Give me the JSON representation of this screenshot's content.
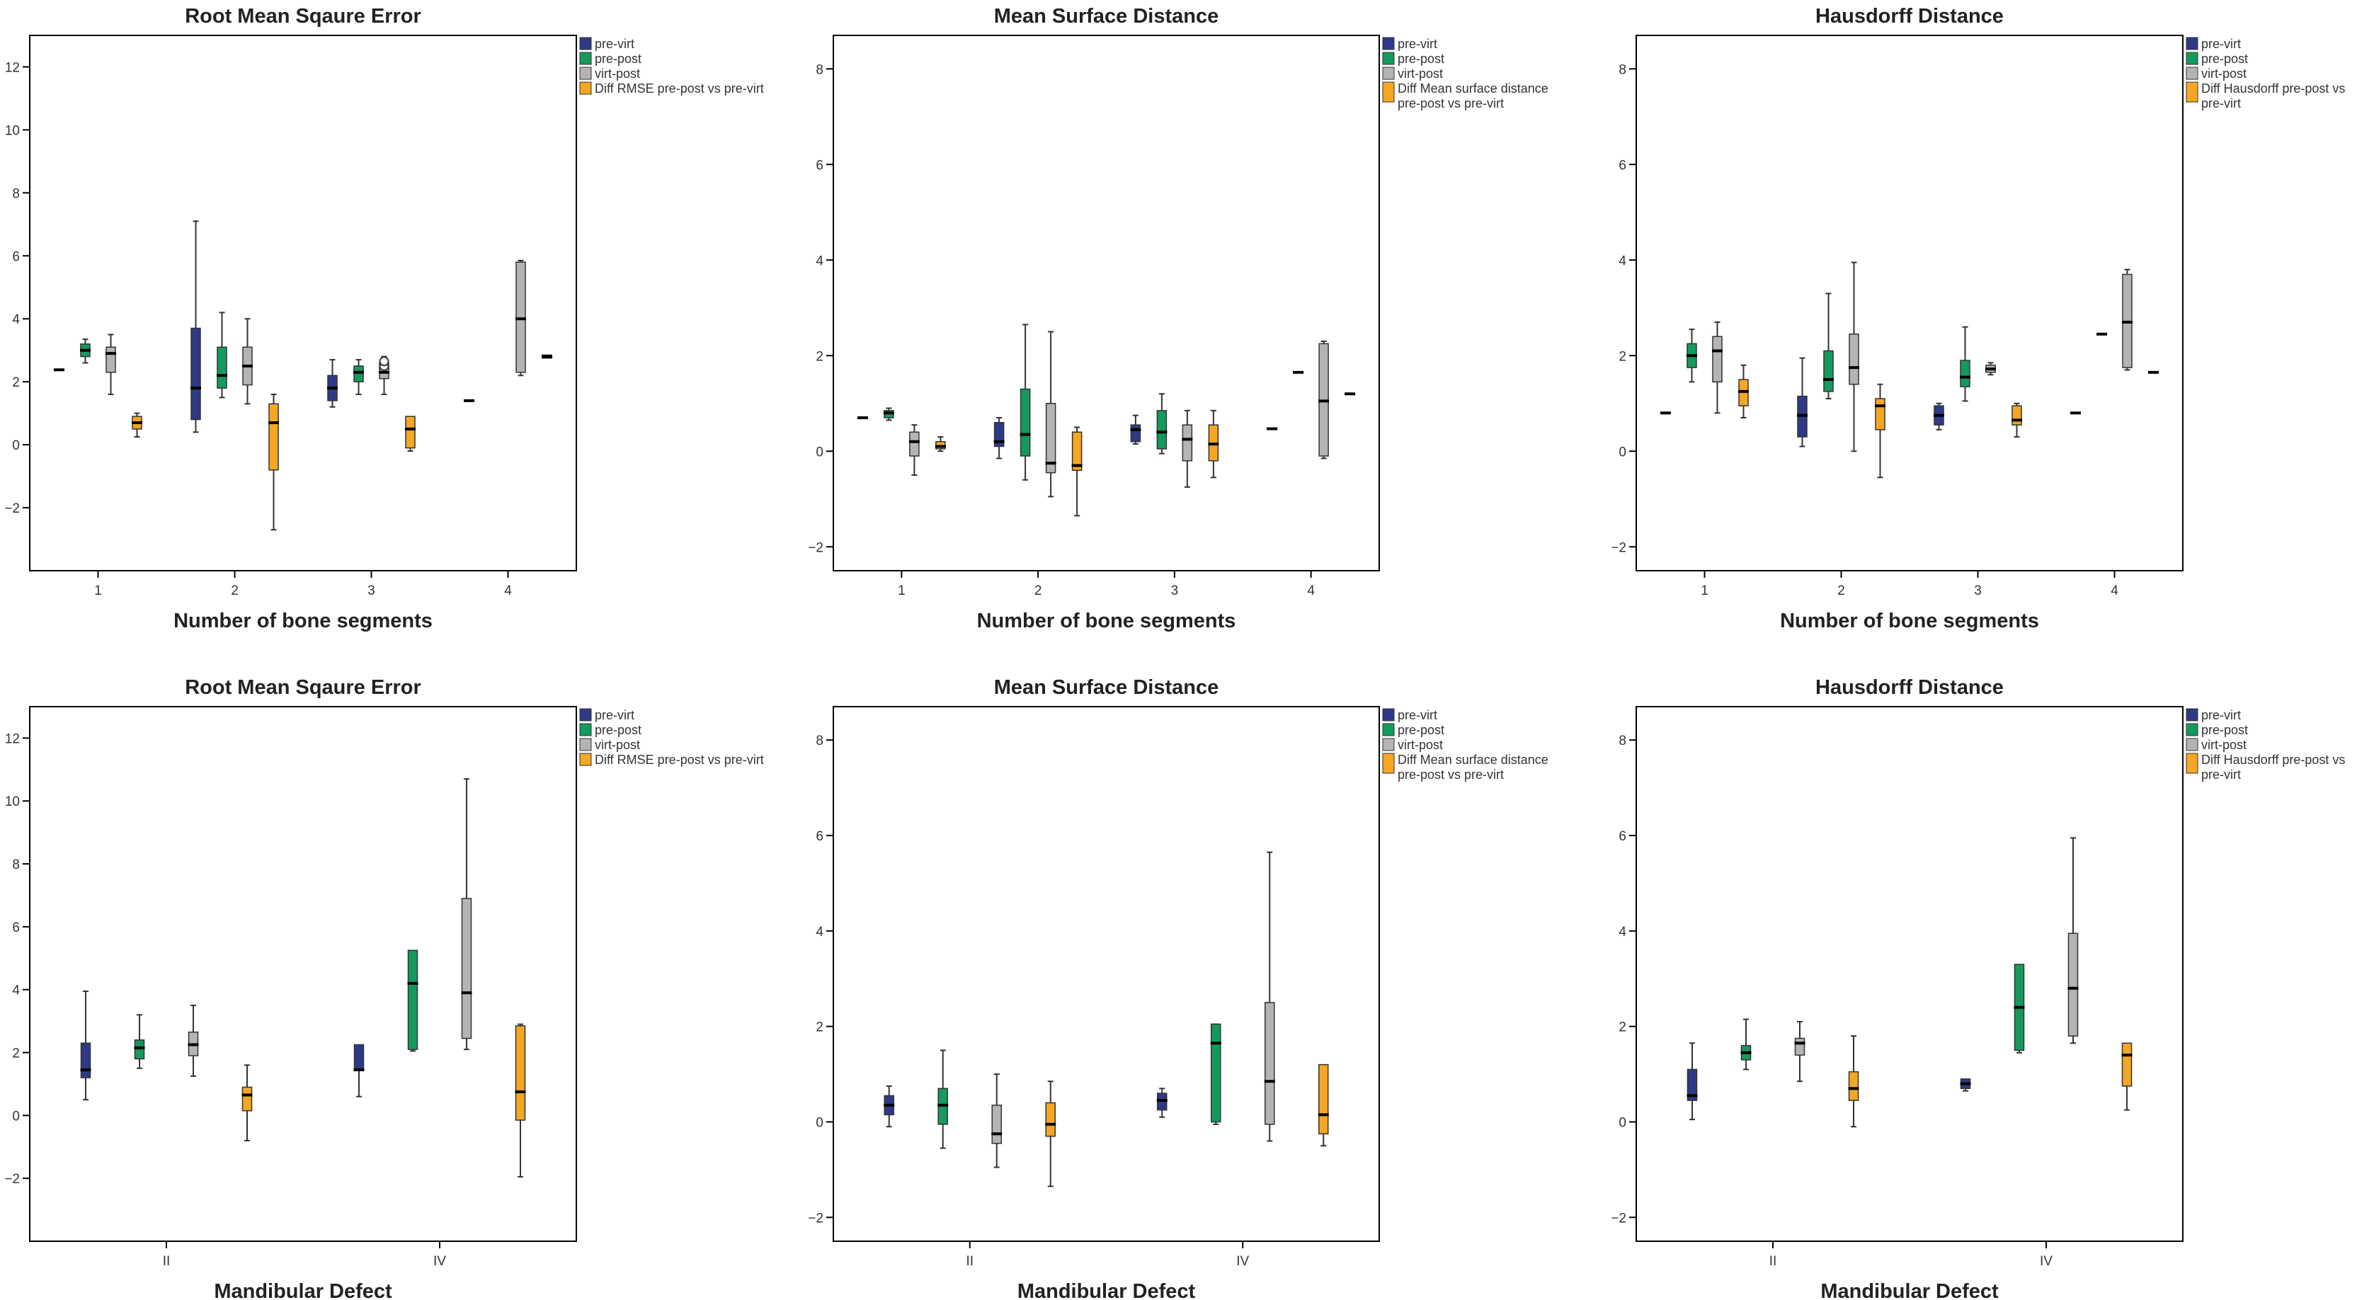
{
  "colors": {
    "pre_virt": "#2e3a87",
    "pre_post": "#149a5c",
    "virt_post": "#b4b4b4",
    "diff": "#f5a623",
    "axis": "#000000"
  },
  "chart_data": [
    {
      "type": "boxplot",
      "title": "Root Mean Sqaure Error",
      "xlabel": "Number of bone segments",
      "ylabel": "",
      "categories": [
        "1",
        "2",
        "3",
        "4"
      ],
      "ylim": [
        -4,
        13
      ],
      "yticks": [
        -2,
        0,
        2,
        4,
        6,
        8,
        10,
        12
      ],
      "legend": [
        "pre-virt",
        "pre-post",
        "virt-post",
        "Diff RMSE pre-post vs pre-virt"
      ],
      "series": [
        {
          "name": "pre-virt",
          "boxes": [
            [
              2.38,
              2.38,
              2.38,
              2.38,
              2.38
            ],
            [
              0.4,
              0.8,
              1.8,
              3.7,
              7.1
            ],
            [
              1.2,
              1.4,
              1.8,
              2.2,
              2.7
            ],
            [
              1.4,
              1.4,
              1.4,
              1.4,
              1.4
            ]
          ]
        },
        {
          "name": "pre-post",
          "boxes": [
            [
              2.6,
              2.8,
              3.0,
              3.2,
              3.35
            ],
            [
              1.5,
              1.8,
              2.2,
              3.1,
              4.2
            ],
            [
              1.6,
              2.0,
              2.3,
              2.5,
              2.7
            ],
            null
          ]
        },
        {
          "name": "virt-post",
          "boxes": [
            [
              1.6,
              2.3,
              2.9,
              3.1,
              3.5
            ],
            [
              1.3,
              1.9,
              2.5,
              3.1,
              4.0
            ],
            [
              1.6,
              2.1,
              2.3,
              2.6,
              2.8
            ],
            [
              2.2,
              2.3,
              4.0,
              5.8,
              5.85
            ]
          ]
        },
        {
          "name": "Diff RMSE pre-post vs pre-virt",
          "boxes": [
            [
              0.25,
              0.5,
              0.7,
              0.9,
              1.0
            ],
            [
              -2.7,
              -0.8,
              0.7,
              1.3,
              1.6
            ],
            [
              -0.2,
              -0.1,
              0.5,
              0.9,
              0.9
            ],
            [
              2.75,
              2.75,
              2.8,
              2.85,
              2.85
            ]
          ]
        }
      ],
      "outliers": [
        {
          "series": 2,
          "category": 2,
          "values": [
            2.5,
            2.65
          ]
        }
      ]
    },
    {
      "type": "boxplot",
      "title": "Mean Surface Distance",
      "xlabel": "Number of bone segments",
      "ylabel": "",
      "categories": [
        "1",
        "2",
        "3",
        "4"
      ],
      "ylim": [
        -2.5,
        8.7
      ],
      "yticks": [
        -2,
        0,
        2,
        4,
        6,
        8
      ],
      "legend": [
        "pre-virt",
        "pre-post",
        "virt-post",
        "Diff Mean surface distance pre-post vs pre-virt"
      ],
      "series": [
        {
          "name": "pre-virt",
          "boxes": [
            [
              0.7,
              0.7,
              0.7,
              0.7,
              0.7
            ],
            [
              -0.15,
              0.1,
              0.2,
              0.6,
              0.7
            ],
            [
              0.15,
              0.2,
              0.45,
              0.55,
              0.75
            ],
            [
              0.47,
              0.47,
              0.47,
              0.47,
              0.47
            ]
          ]
        },
        {
          "name": "pre-post",
          "boxes": [
            [
              0.65,
              0.7,
              0.8,
              0.85,
              0.9
            ],
            [
              -0.6,
              -0.1,
              0.35,
              1.3,
              2.65
            ],
            [
              -0.05,
              0.05,
              0.4,
              0.85,
              1.2
            ],
            [
              1.65,
              1.65,
              1.65,
              1.65,
              1.65
            ]
          ]
        },
        {
          "name": "virt-post",
          "boxes": [
            [
              -0.5,
              -0.1,
              0.2,
              0.4,
              0.55
            ],
            [
              -0.95,
              -0.45,
              -0.25,
              1.0,
              2.5
            ],
            [
              -0.75,
              -0.2,
              0.25,
              0.55,
              0.85
            ],
            [
              -0.15,
              -0.1,
              1.05,
              2.25,
              2.3
            ]
          ]
        },
        {
          "name": "Diff Mean surface distance pre-post vs pre-virt",
          "boxes": [
            [
              0.0,
              0.05,
              0.1,
              0.2,
              0.3
            ],
            [
              -1.35,
              -0.4,
              -0.3,
              0.4,
              0.5
            ],
            [
              -0.55,
              -0.2,
              0.15,
              0.55,
              0.85
            ],
            [
              1.2,
              1.2,
              1.2,
              1.2,
              1.2
            ]
          ]
        }
      ],
      "outliers": []
    },
    {
      "type": "boxplot",
      "title": "Hausdorff Distance",
      "xlabel": "Number of bone segments",
      "ylabel": "",
      "categories": [
        "1",
        "2",
        "3",
        "4"
      ],
      "ylim": [
        -2.5,
        8.7
      ],
      "yticks": [
        -2,
        0,
        2,
        4,
        6,
        8
      ],
      "legend": [
        "pre-virt",
        "pre-post",
        "virt-post",
        "Diff Hausdorff pre-post vs pre-virt"
      ],
      "series": [
        {
          "name": "pre-virt",
          "boxes": [
            [
              0.8,
              0.8,
              0.8,
              0.8,
              0.8
            ],
            [
              0.1,
              0.3,
              0.75,
              1.15,
              1.95
            ],
            [
              0.45,
              0.55,
              0.75,
              0.95,
              1.0
            ],
            [
              0.8,
              0.8,
              0.8,
              0.8,
              0.8
            ]
          ]
        },
        {
          "name": "pre-post",
          "boxes": [
            [
              1.45,
              1.75,
              2.0,
              2.25,
              2.55
            ],
            [
              1.1,
              1.25,
              1.5,
              2.1,
              3.3
            ],
            [
              1.05,
              1.35,
              1.55,
              1.9,
              2.6
            ],
            [
              2.45,
              2.45,
              2.45,
              2.45,
              2.45
            ]
          ]
        },
        {
          "name": "virt-post",
          "boxes": [
            [
              0.8,
              1.45,
              2.1,
              2.4,
              2.7
            ],
            [
              0.0,
              1.4,
              1.75,
              2.45,
              3.95
            ],
            [
              1.6,
              1.65,
              1.72,
              1.8,
              1.85
            ],
            [
              1.7,
              1.75,
              2.7,
              3.7,
              3.8
            ]
          ]
        },
        {
          "name": "Diff Hausdorff pre-post vs pre-virt",
          "boxes": [
            [
              0.7,
              0.95,
              1.25,
              1.5,
              1.8
            ],
            [
              -0.55,
              0.45,
              0.95,
              1.1,
              1.4
            ],
            [
              0.3,
              0.55,
              0.65,
              0.95,
              1.0
            ],
            [
              1.65,
              1.65,
              1.65,
              1.65,
              1.65
            ]
          ]
        }
      ],
      "outliers": []
    },
    {
      "type": "boxplot",
      "title": "Root Mean Sqaure Error",
      "xlabel": "Mandibular Defect",
      "ylabel": "",
      "categories": [
        "II",
        "IV"
      ],
      "ylim": [
        -4,
        13
      ],
      "yticks": [
        -2,
        0,
        2,
        4,
        6,
        8,
        10,
        12
      ],
      "legend": [
        "pre-virt",
        "pre-post",
        "virt-post",
        "Diff RMSE pre-post vs pre-virt"
      ],
      "series": [
        {
          "name": "pre-virt",
          "boxes": [
            [
              0.5,
              1.2,
              1.45,
              2.3,
              3.95
            ],
            [
              0.6,
              1.45,
              1.45,
              2.25,
              2.25
            ]
          ]
        },
        {
          "name": "pre-post",
          "boxes": [
            [
              1.5,
              1.8,
              2.15,
              2.4,
              3.2
            ],
            [
              2.05,
              2.1,
              4.2,
              5.25,
              5.25
            ]
          ]
        },
        {
          "name": "virt-post",
          "boxes": [
            [
              1.25,
              1.9,
              2.25,
              2.65,
              3.5
            ],
            [
              2.1,
              2.45,
              3.9,
              6.9,
              10.7
            ]
          ]
        },
        {
          "name": "Diff RMSE pre-post vs pre-virt",
          "boxes": [
            [
              -0.8,
              0.15,
              0.65,
              0.9,
              1.6
            ],
            [
              -1.95,
              -0.15,
              0.75,
              2.85,
              2.9
            ]
          ]
        }
      ],
      "outliers": []
    },
    {
      "type": "boxplot",
      "title": "Mean Surface Distance",
      "xlabel": "Mandibular Defect",
      "ylabel": "",
      "categories": [
        "II",
        "IV"
      ],
      "ylim": [
        -2.5,
        8.7
      ],
      "yticks": [
        -2,
        0,
        2,
        4,
        6,
        8
      ],
      "legend": [
        "pre-virt",
        "pre-post",
        "virt-post",
        "Diff Mean surface distance pre-post vs pre-virt"
      ],
      "series": [
        {
          "name": "pre-virt",
          "boxes": [
            [
              -0.1,
              0.15,
              0.35,
              0.55,
              0.75
            ],
            [
              0.1,
              0.25,
              0.45,
              0.6,
              0.7
            ]
          ]
        },
        {
          "name": "pre-post",
          "boxes": [
            [
              -0.55,
              -0.05,
              0.35,
              0.7,
              1.5
            ],
            [
              -0.05,
              0.0,
              1.65,
              2.05,
              2.05
            ]
          ]
        },
        {
          "name": "virt-post",
          "boxes": [
            [
              -0.95,
              -0.45,
              -0.25,
              0.35,
              1.0
            ],
            [
              -0.4,
              -0.05,
              0.85,
              2.5,
              5.65
            ]
          ]
        },
        {
          "name": "Diff Mean surface distance pre-post vs pre-virt",
          "boxes": [
            [
              -1.35,
              -0.3,
              -0.05,
              0.4,
              0.85
            ],
            [
              -0.5,
              -0.25,
              0.15,
              1.2,
              1.2
            ]
          ]
        }
      ],
      "outliers": []
    },
    {
      "type": "boxplot",
      "title": "Hausdorff Distance",
      "xlabel": "Mandibular Defect",
      "ylabel": "",
      "categories": [
        "II",
        "IV"
      ],
      "ylim": [
        -2.5,
        8.7
      ],
      "yticks": [
        -2,
        0,
        2,
        4,
        6,
        8
      ],
      "legend": [
        "pre-virt",
        "pre-post",
        "virt-post",
        "Diff Hausdorff pre-post vs pre-virt"
      ],
      "series": [
        {
          "name": "pre-virt",
          "boxes": [
            [
              0.05,
              0.45,
              0.55,
              1.1,
              1.65
            ],
            [
              0.65,
              0.7,
              0.8,
              0.9,
              0.9
            ]
          ]
        },
        {
          "name": "pre-post",
          "boxes": [
            [
              1.1,
              1.3,
              1.45,
              1.6,
              2.15
            ],
            [
              1.45,
              1.5,
              2.4,
              3.3,
              3.3
            ]
          ]
        },
        {
          "name": "virt-post",
          "boxes": [
            [
              0.85,
              1.4,
              1.65,
              1.75,
              2.1
            ],
            [
              1.65,
              1.8,
              2.8,
              3.95,
              5.95
            ]
          ]
        },
        {
          "name": "Diff Hausdorff pre-post vs pre-virt",
          "boxes": [
            [
              -0.1,
              0.45,
              0.7,
              1.05,
              1.8
            ],
            [
              0.25,
              0.75,
              1.4,
              1.65,
              1.65
            ]
          ]
        }
      ],
      "outliers": []
    }
  ]
}
